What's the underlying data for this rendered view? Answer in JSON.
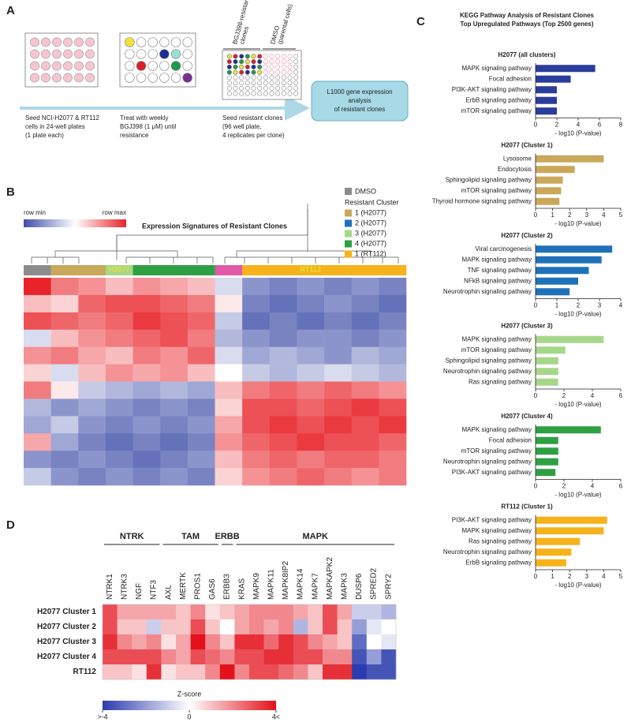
{
  "panel_a": {
    "label": "A",
    "steps": [
      [
        "Seed NCI-H2077 & RT112",
        "cells in 24-well plates",
        "(1 plate each)"
      ],
      [
        "Treat with weekly",
        "BGJ398 (1 μM) until",
        "resistance"
      ],
      [
        "Seed resistant clones",
        "(96 well plate,",
        "4 replicates per clone)"
      ]
    ],
    "plate_labels": [
      [
        "BGJ398-resistant",
        "clones"
      ],
      [
        "DMSO",
        "(parental cells)"
      ]
    ],
    "box": [
      "L1000 gene expression",
      "analysis",
      "of resistant clones"
    ]
  },
  "panel_b": {
    "label": "B",
    "scale_labels": [
      "row min",
      "row max"
    ],
    "scale_colors": [
      "#3f4ea8",
      "#ffffff",
      "#e8242a"
    ],
    "title": "Expression Signatures of Resistant Clones",
    "legend": {
      "dmso": {
        "name": "DMSO",
        "color": "#8c8c8c"
      },
      "heading": "Resistant Cluster",
      "items": [
        {
          "name": "1 (H2077)",
          "color": "#c9a85a"
        },
        {
          "name": "2 (H2077)",
          "color": "#1f72b8"
        },
        {
          "name": "3 (H2077)",
          "color": "#a5d78a"
        },
        {
          "name": "4 (H2077)",
          "color": "#2ea043"
        },
        {
          "name": "1 (RT112)",
          "color": "#f5b21a"
        }
      ]
    },
    "group_labels": [
      "H2077",
      "RT112"
    ],
    "column_colors": [
      "#8c8c8c",
      "#c9a85a",
      "#c9a85a",
      "#a5d78a",
      "#2ea043",
      "#2ea043",
      "#2ea043",
      "#e05aa8",
      "#f5b21a",
      "#f5b21a",
      "#f5b21a",
      "#f5b21a",
      "#f5b21a",
      "#f5b21a"
    ],
    "zlim": [
      -1,
      1
    ],
    "values": [
      [
        1,
        0.6,
        0.5,
        0.3,
        0.5,
        0.4,
        0.3,
        -0.2,
        -0.6,
        -0.7,
        -0.6,
        -0.7,
        -0.6,
        -0.7
      ],
      [
        0.3,
        0.2,
        0.7,
        0.8,
        0.8,
        0.7,
        0.6,
        0.1,
        -0.7,
        -0.8,
        -0.7,
        -0.6,
        -0.7,
        -0.8
      ],
      [
        0.8,
        0.7,
        0.6,
        0.7,
        0.9,
        0.8,
        0.7,
        -0.3,
        -0.8,
        -0.7,
        -0.8,
        -0.7,
        -0.8,
        -0.7
      ],
      [
        -0.2,
        0.3,
        0.5,
        0.6,
        0.7,
        0.8,
        0.6,
        -0.4,
        -0.6,
        -0.7,
        -0.6,
        -0.6,
        -0.7,
        -0.6
      ],
      [
        0.5,
        0.6,
        0.4,
        0.3,
        0.6,
        0.5,
        0.7,
        -0.2,
        -0.5,
        -0.4,
        -0.5,
        -0.6,
        -0.4,
        -0.5
      ],
      [
        0.2,
        -0.2,
        0.3,
        0.5,
        0.4,
        0.5,
        0.3,
        0,
        -0.3,
        -0.4,
        -0.3,
        -0.2,
        -0.3,
        -0.4
      ],
      [
        0.6,
        0.1,
        -0.3,
        -0.4,
        -0.5,
        -0.4,
        -0.5,
        0.3,
        0.6,
        0.7,
        0.6,
        0.7,
        0.6,
        0.5
      ],
      [
        -0.4,
        -0.6,
        -0.5,
        -0.6,
        -0.7,
        -0.6,
        -0.7,
        0.2,
        0.8,
        0.8,
        0.7,
        0.8,
        0.9,
        0.8
      ],
      [
        -0.5,
        -0.3,
        -0.6,
        -0.7,
        -0.6,
        -0.7,
        -0.6,
        0.4,
        0.8,
        0.9,
        0.8,
        0.9,
        0.8,
        0.9
      ],
      [
        0.4,
        -0.5,
        -0.7,
        -0.8,
        -0.7,
        -0.8,
        -0.7,
        0.5,
        0.7,
        0.8,
        0.9,
        0.8,
        0.8,
        0.7
      ],
      [
        -0.6,
        -0.7,
        -0.6,
        -0.7,
        -0.8,
        -0.7,
        -0.6,
        0.3,
        0.6,
        0.7,
        0.6,
        0.7,
        0.7,
        0.6
      ],
      [
        -0.3,
        -0.6,
        -0.7,
        -0.6,
        -0.7,
        -0.6,
        -0.7,
        0.2,
        0.5,
        0.6,
        0.7,
        0.6,
        0.5,
        0.6
      ]
    ]
  },
  "panel_c": {
    "label": "C",
    "title": [
      "KEGG Pathway Analysis of Resistant Clones",
      "Top Upregulated Pathways (Top 2500 genes)"
    ]
  },
  "chart_data": [
    {
      "type": "bar",
      "orientation": "horizontal",
      "title": "H2077 (all clusters)",
      "color": "#2b3d9a",
      "categories": [
        "MAPK signaling pathway",
        "Focal adhesion",
        "PI3K-AKT signaling pathway",
        "ErbB signaling pathway",
        "mTOR signaling pathway"
      ],
      "values": [
        5.6,
        3.3,
        2.0,
        2.0,
        2.0
      ],
      "xlim": [
        0,
        8
      ],
      "xticks": [
        0,
        2,
        4,
        6,
        8
      ],
      "xlabel": "- log10 (P-value)"
    },
    {
      "type": "bar",
      "orientation": "horizontal",
      "title": "H2077 (Cluster 1)",
      "color": "#c9a85a",
      "categories": [
        "Lysosome",
        "Endocytosis",
        "Sphingolipid signaling pathway",
        "mTOR signaling pathway",
        "Thyroid hormone signaling pathway"
      ],
      "values": [
        4.0,
        2.3,
        1.6,
        1.5,
        1.4
      ],
      "xlim": [
        0,
        5
      ],
      "xticks": [
        0,
        1,
        2,
        3,
        4,
        5
      ],
      "xlabel": "- log10 (P-value)"
    },
    {
      "type": "bar",
      "orientation": "horizontal",
      "title": "H2077 (Cluster 2)",
      "color": "#1f72b8",
      "categories": [
        "Viral carcinogenesis",
        "MAPK signaling pathway",
        "TNF signaling pathway",
        "NFkB signaling pathway",
        "Neurotrophin signaling pathway"
      ],
      "values": [
        3.6,
        3.1,
        2.5,
        2.0,
        1.6
      ],
      "xlim": [
        0,
        4
      ],
      "xticks": [
        0,
        1,
        2,
        3,
        4
      ],
      "xlabel": "- log10 (P-value)"
    },
    {
      "type": "bar",
      "orientation": "horizontal",
      "title": "H2077 (Cluster 3)",
      "color": "#a5d78a",
      "categories": [
        "MAPK signaling pathway",
        "mTOR signaling pathway",
        "Sphingolipid signaling pathway",
        "Neurotrophin signaling pathway",
        "Ras signaling pathway"
      ],
      "values": [
        4.8,
        2.1,
        1.6,
        1.6,
        1.6
      ],
      "xlim": [
        0,
        6
      ],
      "xticks": [
        0,
        2,
        4,
        6
      ],
      "xlabel": "- log10 (P-value)"
    },
    {
      "type": "bar",
      "orientation": "horizontal",
      "title": "H2077 (Cluster 4)",
      "color": "#2ea043",
      "categories": [
        "MAPK signaling pathway",
        "Focal adhesion",
        "mTOR signaling pathway",
        "Neurotrophin signaling pathway",
        "PI3K-AKT signaling pathway"
      ],
      "values": [
        4.6,
        1.6,
        1.6,
        1.6,
        1.4
      ],
      "xlim": [
        0,
        6
      ],
      "xticks": [
        0,
        2,
        4,
        6
      ],
      "xlabel": "- log10 (P-value)"
    },
    {
      "type": "bar",
      "orientation": "horizontal",
      "title": "RT112 (Cluster 1)",
      "color": "#f5b21a",
      "categories": [
        "PI3K-AKT signaling pathway",
        "MAPK signaling pathway",
        "Ras signaling pathway",
        "Neurotrophin signaling pathway",
        "ErbB signaling pathway"
      ],
      "values": [
        4.2,
        4.0,
        2.6,
        2.1,
        1.8
      ],
      "xlim": [
        0,
        5
      ],
      "xticks": [
        0,
        1,
        2,
        3,
        4,
        5
      ],
      "xlabel": "- log10 (P-value)"
    }
  ],
  "panel_d": {
    "label": "D",
    "groups": [
      {
        "name": "NTRK",
        "genes": [
          "NTRK1",
          "NTRK3",
          "NGF",
          "NTF3"
        ]
      },
      {
        "name": "TAM",
        "genes": [
          "AXL",
          "MERTK",
          "PROS1",
          "GAS6"
        ]
      },
      {
        "name": "ERBB",
        "genes": [
          "ERBB3"
        ]
      },
      {
        "name": "MAPK",
        "genes": [
          "KRAS",
          "MAPK9",
          "MAPK11",
          "MAPK8IP2",
          "MAPK14",
          "MAPK7",
          "MAPKAPK2",
          "MAPK3",
          "DUSP6",
          "SPRED2",
          "SPRY2"
        ]
      }
    ],
    "rows": [
      {
        "name": "H2077 Cluster 1",
        "values": [
          3,
          1.5,
          1.5,
          1.5,
          1.5,
          1,
          2,
          0.5,
          1,
          1.5,
          2,
          2,
          2,
          1.5,
          1,
          3,
          1.5,
          -1,
          -1,
          -1.5
        ]
      },
      {
        "name": "H2077 Cluster 2",
        "values": [
          3,
          1,
          1,
          -1,
          1,
          1,
          3,
          1,
          0,
          1.5,
          2,
          1.5,
          2,
          -1.5,
          1,
          3,
          1,
          -2,
          -0.5,
          0
        ]
      },
      {
        "name": "H2077 Cluster 3",
        "values": [
          3.5,
          2,
          1.5,
          2,
          0.5,
          1.5,
          4,
          2,
          1,
          3.5,
          3.5,
          2.5,
          3.5,
          3,
          2,
          1.5,
          1,
          -3,
          0,
          -0.5
        ]
      },
      {
        "name": "H2077 Cluster 4",
        "values": [
          3,
          3,
          3,
          3,
          2,
          1.5,
          3,
          2.5,
          2,
          3,
          3,
          3.5,
          3.5,
          3,
          3,
          2,
          2,
          -3.5,
          -2,
          -3.5
        ]
      },
      {
        "name": "RT112",
        "values": [
          1,
          1,
          0.5,
          3.5,
          0.5,
          1,
          1,
          2,
          4,
          2,
          3,
          3,
          2.5,
          2,
          1,
          3.5,
          3.5,
          -4,
          -3.5,
          -3.5
        ]
      }
    ],
    "zlim": [
      -4,
      4
    ],
    "colors": [
      "#2b3cae",
      "#ffffff",
      "#e3111b"
    ],
    "colorbar_title": "Z-score",
    "colorbar_ticks": [
      {
        "value": -4,
        "label": ">-4"
      },
      0,
      {
        "value": 4,
        "label": "4<"
      }
    ]
  }
}
